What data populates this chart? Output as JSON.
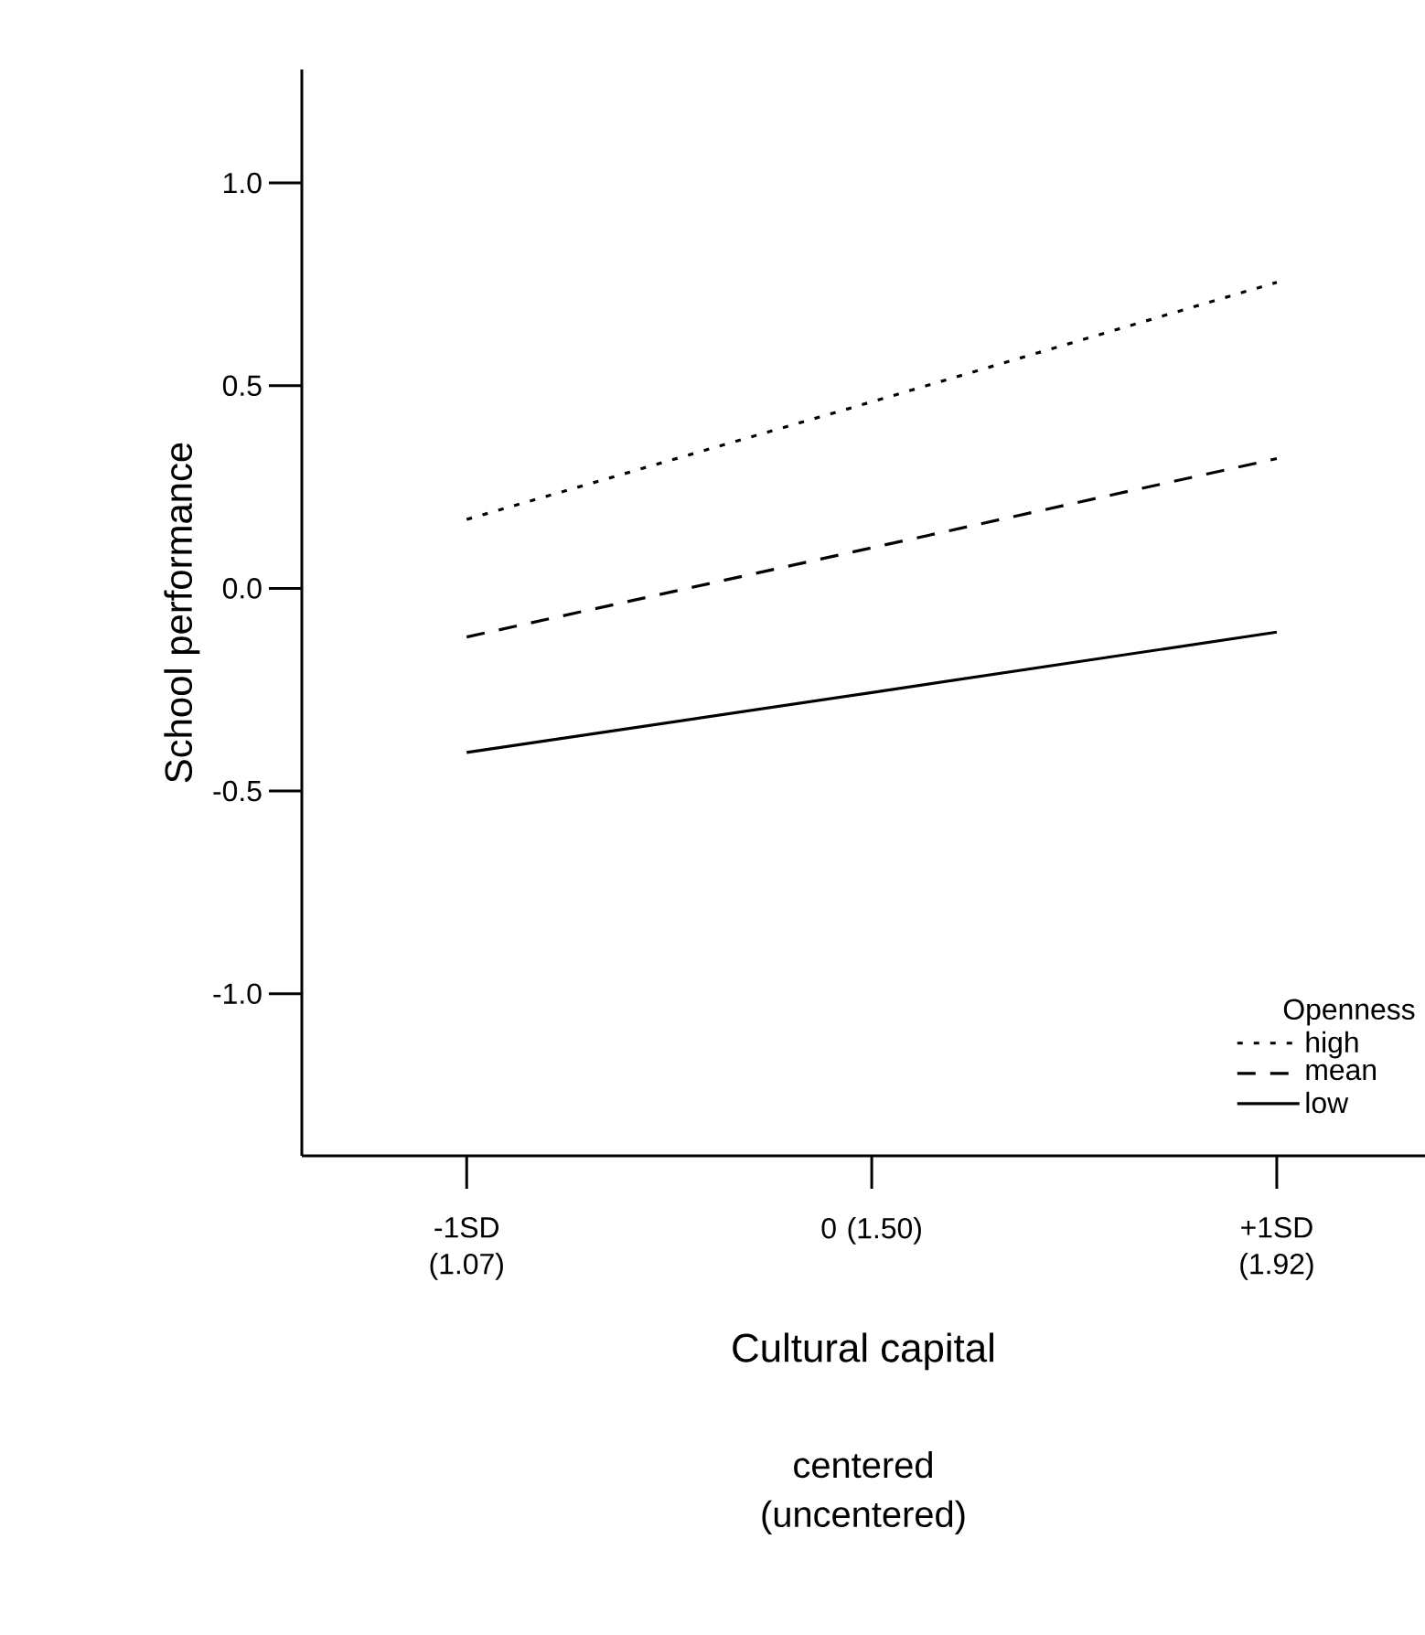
{
  "chart_data": {
    "type": "line",
    "xlabel": "Cultural capital",
    "ylabel": "School performance",
    "legend_title": "Openness",
    "annotations": [
      "centered (uncentered)"
    ],
    "categories": [
      "-1SD (1.07)",
      "0 (1.50)",
      "+1SD (1.92)"
    ],
    "ylim": [
      -1.4,
      1.28
    ],
    "yticks": [
      {
        "value": -1,
        "label": "-1.0"
      },
      {
        "value": -0.5,
        "label": "-0.5"
      },
      {
        "value": 0,
        "label": "0.0"
      },
      {
        "value": 0.5,
        "label": "0.5"
      },
      {
        "value": 1,
        "label": "1.0"
      }
    ],
    "legend": "bottom right",
    "marker": "none",
    "series": [
      {
        "name": "high",
        "color": "#000000",
        "line_style": "dotted",
        "values": [
          0.17,
          0.46,
          0.755
        ]
      },
      {
        "name": "mean",
        "color": "#000000",
        "line_style": "dashed",
        "values": [
          -0.12,
          0.1,
          0.32
        ]
      },
      {
        "name": "low",
        "color": "#000000",
        "line_style": "solid",
        "values": [
          -0.405,
          -0.257,
          -0.108
        ]
      }
    ]
  }
}
